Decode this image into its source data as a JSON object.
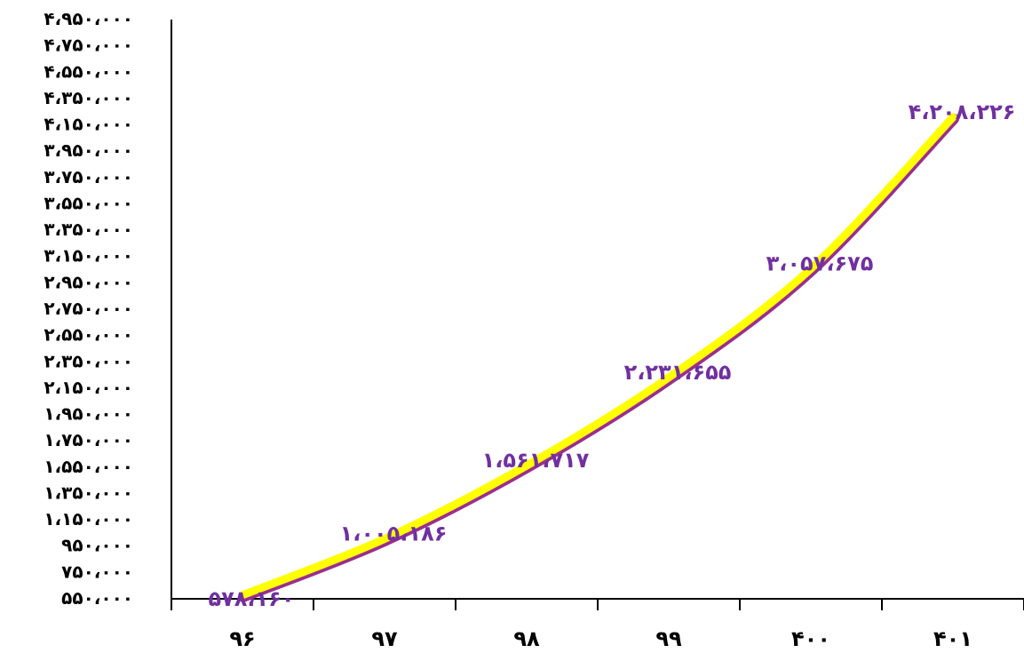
{
  "colors": {
    "line_fill": "#FFFF00",
    "line_edge": "#9B2E8F",
    "data_label": "#7030A0",
    "axis": "#000000"
  },
  "chart_data": {
    "type": "line",
    "title": "",
    "xlabel": "",
    "ylabel": "",
    "categories": [
      "۹۶",
      "۹۷",
      "۹۸",
      "۹۹",
      "۴۰۰",
      "۴۰۱"
    ],
    "series": [
      {
        "values": [
          578160,
          1005186,
          1561717,
          2231655,
          3057675,
          4208226
        ],
        "labels": [
          "۵۷۸،۱۶۰",
          "۱،۰۰۵،۱۸۶",
          "۱،۵۶۱،۷۱۷",
          "۲،۲۳۱،۶۵۵",
          "۳،۰۵۷،۶۷۵",
          "۴،۲۰۸،۲۲۶"
        ]
      }
    ],
    "ylim": [
      550000,
      4950000
    ],
    "yticks": [
      550000,
      750000,
      950000,
      1150000,
      1350000,
      1550000,
      1750000,
      1950000,
      2150000,
      2350000,
      2550000,
      2750000,
      2950000,
      3150000,
      3350000,
      3550000,
      3750000,
      3950000,
      4150000,
      4350000,
      4550000,
      4750000,
      4950000
    ],
    "ytick_labels": [
      "۵۵۰،۰۰۰",
      "۷۵۰،۰۰۰",
      "۹۵۰،۰۰۰",
      "۱،۱۵۰،۰۰۰",
      "۱،۳۵۰،۰۰۰",
      "۱،۵۵۰،۰۰۰",
      "۱،۷۵۰،۰۰۰",
      "۱،۹۵۰،۰۰۰",
      "۲،۱۵۰،۰۰۰",
      "۲،۳۵۰،۰۰۰",
      "۲،۵۵۰،۰۰۰",
      "۲،۷۵۰،۰۰۰",
      "۲،۹۵۰،۰۰۰",
      "۳،۱۵۰،۰۰۰",
      "۳،۳۵۰،۰۰۰",
      "۳،۵۵۰،۰۰۰",
      "۳،۷۵۰،۰۰۰",
      "۳،۹۵۰،۰۰۰",
      "۴،۱۵۰،۰۰۰",
      "۴،۳۵۰،۰۰۰",
      "۴،۵۵۰،۰۰۰",
      "۴،۷۵۰،۰۰۰",
      "۴،۹۵۰،۰۰۰"
    ],
    "grid": false,
    "legend": "none"
  }
}
